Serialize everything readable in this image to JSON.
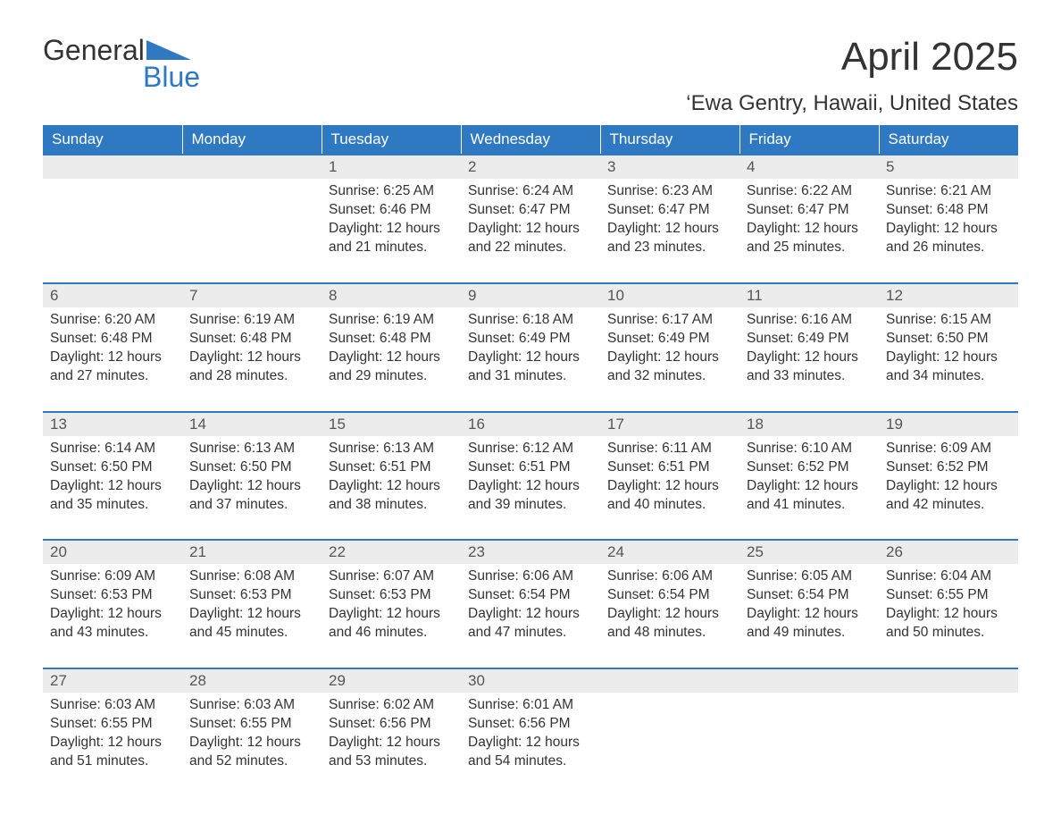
{
  "logo": {
    "line1": "General",
    "line2": "Blue",
    "color_primary": "#2f79c2"
  },
  "header": {
    "title": "April 2025",
    "subtitle": "‘Ewa Gentry, Hawaii, United States"
  },
  "colors": {
    "header_bg": "#2f79c2",
    "header_text": "#ffffff",
    "daynum_bg": "#ececec",
    "week_divider": "#2f79c2",
    "text": "#333333"
  },
  "day_headers": [
    "Sunday",
    "Monday",
    "Tuesday",
    "Wednesday",
    "Thursday",
    "Friday",
    "Saturday"
  ],
  "labels": {
    "sunrise": "Sunrise: ",
    "sunset": "Sunset: ",
    "daylight": "Daylight: "
  },
  "weeks": [
    [
      null,
      null,
      {
        "n": "1",
        "sr": "6:25 AM",
        "ss": "6:46 PM",
        "dl": "12 hours and 21 minutes."
      },
      {
        "n": "2",
        "sr": "6:24 AM",
        "ss": "6:47 PM",
        "dl": "12 hours and 22 minutes."
      },
      {
        "n": "3",
        "sr": "6:23 AM",
        "ss": "6:47 PM",
        "dl": "12 hours and 23 minutes."
      },
      {
        "n": "4",
        "sr": "6:22 AM",
        "ss": "6:47 PM",
        "dl": "12 hours and 25 minutes."
      },
      {
        "n": "5",
        "sr": "6:21 AM",
        "ss": "6:48 PM",
        "dl": "12 hours and 26 minutes."
      }
    ],
    [
      {
        "n": "6",
        "sr": "6:20 AM",
        "ss": "6:48 PM",
        "dl": "12 hours and 27 minutes."
      },
      {
        "n": "7",
        "sr": "6:19 AM",
        "ss": "6:48 PM",
        "dl": "12 hours and 28 minutes."
      },
      {
        "n": "8",
        "sr": "6:19 AM",
        "ss": "6:48 PM",
        "dl": "12 hours and 29 minutes."
      },
      {
        "n": "9",
        "sr": "6:18 AM",
        "ss": "6:49 PM",
        "dl": "12 hours and 31 minutes."
      },
      {
        "n": "10",
        "sr": "6:17 AM",
        "ss": "6:49 PM",
        "dl": "12 hours and 32 minutes."
      },
      {
        "n": "11",
        "sr": "6:16 AM",
        "ss": "6:49 PM",
        "dl": "12 hours and 33 minutes."
      },
      {
        "n": "12",
        "sr": "6:15 AM",
        "ss": "6:50 PM",
        "dl": "12 hours and 34 minutes."
      }
    ],
    [
      {
        "n": "13",
        "sr": "6:14 AM",
        "ss": "6:50 PM",
        "dl": "12 hours and 35 minutes."
      },
      {
        "n": "14",
        "sr": "6:13 AM",
        "ss": "6:50 PM",
        "dl": "12 hours and 37 minutes."
      },
      {
        "n": "15",
        "sr": "6:13 AM",
        "ss": "6:51 PM",
        "dl": "12 hours and 38 minutes."
      },
      {
        "n": "16",
        "sr": "6:12 AM",
        "ss": "6:51 PM",
        "dl": "12 hours and 39 minutes."
      },
      {
        "n": "17",
        "sr": "6:11 AM",
        "ss": "6:51 PM",
        "dl": "12 hours and 40 minutes."
      },
      {
        "n": "18",
        "sr": "6:10 AM",
        "ss": "6:52 PM",
        "dl": "12 hours and 41 minutes."
      },
      {
        "n": "19",
        "sr": "6:09 AM",
        "ss": "6:52 PM",
        "dl": "12 hours and 42 minutes."
      }
    ],
    [
      {
        "n": "20",
        "sr": "6:09 AM",
        "ss": "6:53 PM",
        "dl": "12 hours and 43 minutes."
      },
      {
        "n": "21",
        "sr": "6:08 AM",
        "ss": "6:53 PM",
        "dl": "12 hours and 45 minutes."
      },
      {
        "n": "22",
        "sr": "6:07 AM",
        "ss": "6:53 PM",
        "dl": "12 hours and 46 minutes."
      },
      {
        "n": "23",
        "sr": "6:06 AM",
        "ss": "6:54 PM",
        "dl": "12 hours and 47 minutes."
      },
      {
        "n": "24",
        "sr": "6:06 AM",
        "ss": "6:54 PM",
        "dl": "12 hours and 48 minutes."
      },
      {
        "n": "25",
        "sr": "6:05 AM",
        "ss": "6:54 PM",
        "dl": "12 hours and 49 minutes."
      },
      {
        "n": "26",
        "sr": "6:04 AM",
        "ss": "6:55 PM",
        "dl": "12 hours and 50 minutes."
      }
    ],
    [
      {
        "n": "27",
        "sr": "6:03 AM",
        "ss": "6:55 PM",
        "dl": "12 hours and 51 minutes."
      },
      {
        "n": "28",
        "sr": "6:03 AM",
        "ss": "6:55 PM",
        "dl": "12 hours and 52 minutes."
      },
      {
        "n": "29",
        "sr": "6:02 AM",
        "ss": "6:56 PM",
        "dl": "12 hours and 53 minutes."
      },
      {
        "n": "30",
        "sr": "6:01 AM",
        "ss": "6:56 PM",
        "dl": "12 hours and 54 minutes."
      },
      null,
      null,
      null
    ]
  ]
}
